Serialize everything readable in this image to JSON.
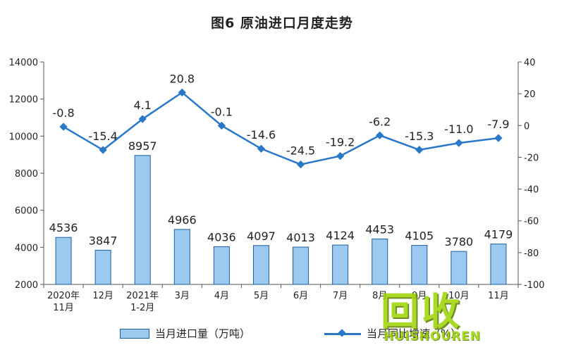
{
  "chart_data": {
    "type": "bar+line",
    "title": "图6 原油进口月度走势",
    "categories": [
      "2020年\n11月",
      "12月",
      "2021年\n1-2月",
      "3月",
      "4月",
      "5月",
      "6月",
      "7月",
      "8月",
      "9月",
      "10月",
      "11月"
    ],
    "series": [
      {
        "name": "当月进口量（万吨）",
        "type": "bar",
        "axis": "left",
        "color": "#9cc9f0",
        "values": [
          4536,
          3847,
          8957,
          4966,
          4036,
          4097,
          4013,
          4124,
          4453,
          4105,
          3780,
          4179
        ]
      },
      {
        "name": "当月同比增速（%）",
        "type": "line",
        "axis": "right",
        "color": "#2a78c8",
        "values": [
          -0.8,
          -15.4,
          4.1,
          20.8,
          -0.1,
          -14.6,
          -24.5,
          -19.2,
          -6.2,
          -15.3,
          -11.0,
          -7.9
        ]
      }
    ],
    "y_left": {
      "min": 2000,
      "max": 14000,
      "step": 2000,
      "ticks": [
        2000,
        4000,
        6000,
        8000,
        10000,
        12000,
        14000
      ]
    },
    "y_right": {
      "min": -100,
      "max": 40,
      "step": 20,
      "ticks": [
        -100,
        -80,
        -60,
        -40,
        -20,
        0,
        20,
        40
      ]
    },
    "bar_labels": [
      "4536",
      "3847",
      "8957",
      "4966",
      "4036",
      "4097",
      "4013",
      "4124",
      "4453",
      "4105",
      "3780",
      "4179"
    ],
    "line_labels": [
      "-0.8",
      "-15.4",
      "4.1",
      "20.8",
      "-0.1",
      "-14.6",
      "-24.5",
      "-19.2",
      "-6.2",
      "-15.3",
      "-11.0",
      "-7.9"
    ],
    "legend": [
      "当月进口量（万吨）",
      "当月同比增速（%）"
    ],
    "legend_placement": "bottom",
    "grid": false
  },
  "watermark": {
    "logo": "回收",
    "sub": "HUISHOUREN"
  }
}
